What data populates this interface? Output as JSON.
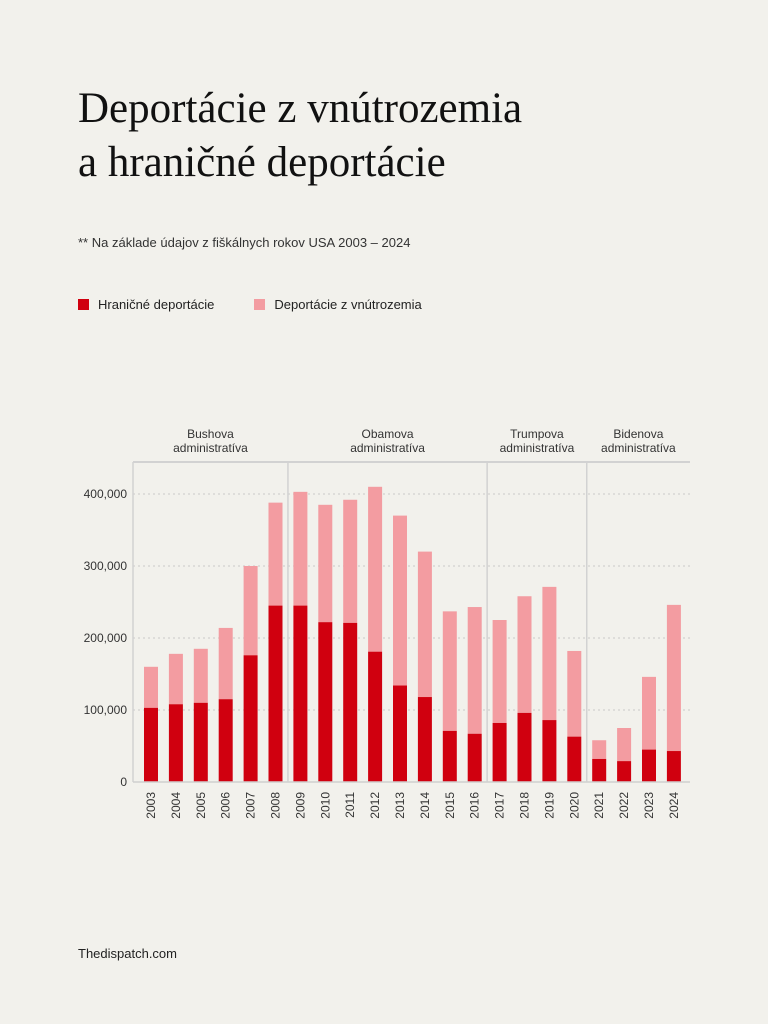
{
  "title_line1": "Deportácie z vnútrozemia",
  "title_line2": "a hraničné deportácie",
  "subtitle": "**   Na základe údajov z fiškálnych rokov USA 2003 – 2024",
  "source": "Thedispatch.com",
  "colors": {
    "border": "#d0000f",
    "interior": "#f39ca1",
    "grid": "#cfcfcf"
  },
  "chart_data": {
    "type": "bar",
    "stacked": true,
    "title": "Deportácie z vnútrozemia a hraničné deportácie",
    "xlabel": "",
    "ylabel": "",
    "ylim": [
      0,
      450000
    ],
    "yticks": [
      0,
      100000,
      200000,
      300000,
      400000
    ],
    "ytick_labels": [
      "0",
      "100,000",
      "200,000",
      "300,000",
      "400,000"
    ],
    "grid": true,
    "legend_placement": "top-left",
    "categories": [
      "2003",
      "2004",
      "2005",
      "2006",
      "2007",
      "2008",
      "2009",
      "2010",
      "2011",
      "2012",
      "2013",
      "2014",
      "2015",
      "2016",
      "2017",
      "2018",
      "2019",
      "2020",
      "2021",
      "2022",
      "2023",
      "2024"
    ],
    "series": [
      {
        "name": "Hraničné deportácie",
        "color": "#d0000f",
        "values": [
          103000,
          108000,
          110000,
          115000,
          176000,
          245000,
          245000,
          222000,
          221000,
          181000,
          134000,
          118000,
          71000,
          67000,
          82000,
          96000,
          86000,
          63000,
          32000,
          29000,
          45000,
          43000
        ]
      },
      {
        "name": "Deportácie z vnútrozemia",
        "color": "#f39ca1",
        "values": [
          57000,
          70000,
          75000,
          99000,
          124000,
          143000,
          158000,
          163000,
          171000,
          229000,
          236000,
          202000,
          166000,
          176000,
          143000,
          162000,
          185000,
          119000,
          26000,
          46000,
          101000,
          203000
        ]
      }
    ],
    "annotations": [
      {
        "label_line1": "Bushova",
        "label_line2": "administratíva",
        "from": "2003",
        "to": "2008"
      },
      {
        "label_line1": "Obamova",
        "label_line2": "administratíva",
        "from": "2009",
        "to": "2016"
      },
      {
        "label_line1": "Trumpova",
        "label_line2": "administratíva",
        "from": "2017",
        "to": "2020"
      },
      {
        "label_line1": "Bidenova",
        "label_line2": "administratíva",
        "from": "2021",
        "to": "2024"
      }
    ]
  }
}
